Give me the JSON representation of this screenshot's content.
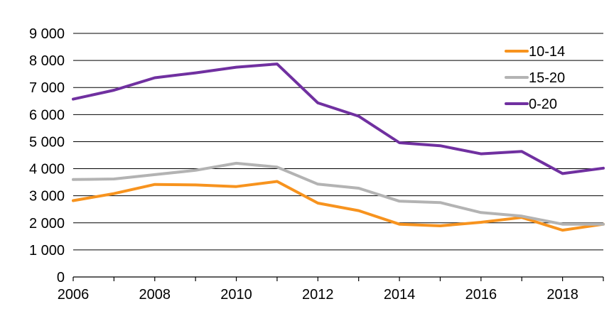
{
  "chart_data": {
    "type": "line",
    "title": "",
    "xlabel": "",
    "ylabel": "",
    "x": [
      2006,
      2007,
      2008,
      2009,
      2010,
      2011,
      2012,
      2013,
      2014,
      2015,
      2016,
      2017,
      2018,
      2019
    ],
    "xlim": [
      2006,
      2019
    ],
    "ylim": [
      0,
      9000
    ],
    "x_ticks": [
      2006,
      2008,
      2010,
      2012,
      2014,
      2016,
      2018
    ],
    "x_tick_labels": [
      "2006",
      "2008",
      "2010",
      "2012",
      "2014",
      "2016",
      "2018"
    ],
    "y_ticks": [
      0,
      1000,
      2000,
      3000,
      4000,
      5000,
      6000,
      7000,
      8000,
      9000
    ],
    "y_tick_labels": [
      "0",
      "1 000",
      "2 000",
      "3 000",
      "4 000",
      "5 000",
      "6 000",
      "7 000",
      "8 000",
      "9 000"
    ],
    "grid": true,
    "legend_position": "top-right",
    "series": [
      {
        "name": "10-14",
        "color": "#F7931E",
        "values": [
          2820,
          3080,
          3420,
          3400,
          3340,
          3530,
          2730,
          2450,
          1950,
          1890,
          2020,
          2200,
          1730,
          1950
        ]
      },
      {
        "name": "15-20",
        "color": "#B3B3B3",
        "values": [
          3600,
          3620,
          3780,
          3940,
          4200,
          4060,
          3430,
          3280,
          2800,
          2750,
          2380,
          2250,
          1950,
          1950
        ]
      },
      {
        "name": "0-20",
        "color": "#7030A0",
        "values": [
          6570,
          6900,
          7360,
          7540,
          7750,
          7870,
          6430,
          5940,
          4960,
          4850,
          4550,
          4640,
          3820,
          4020
        ]
      }
    ]
  }
}
